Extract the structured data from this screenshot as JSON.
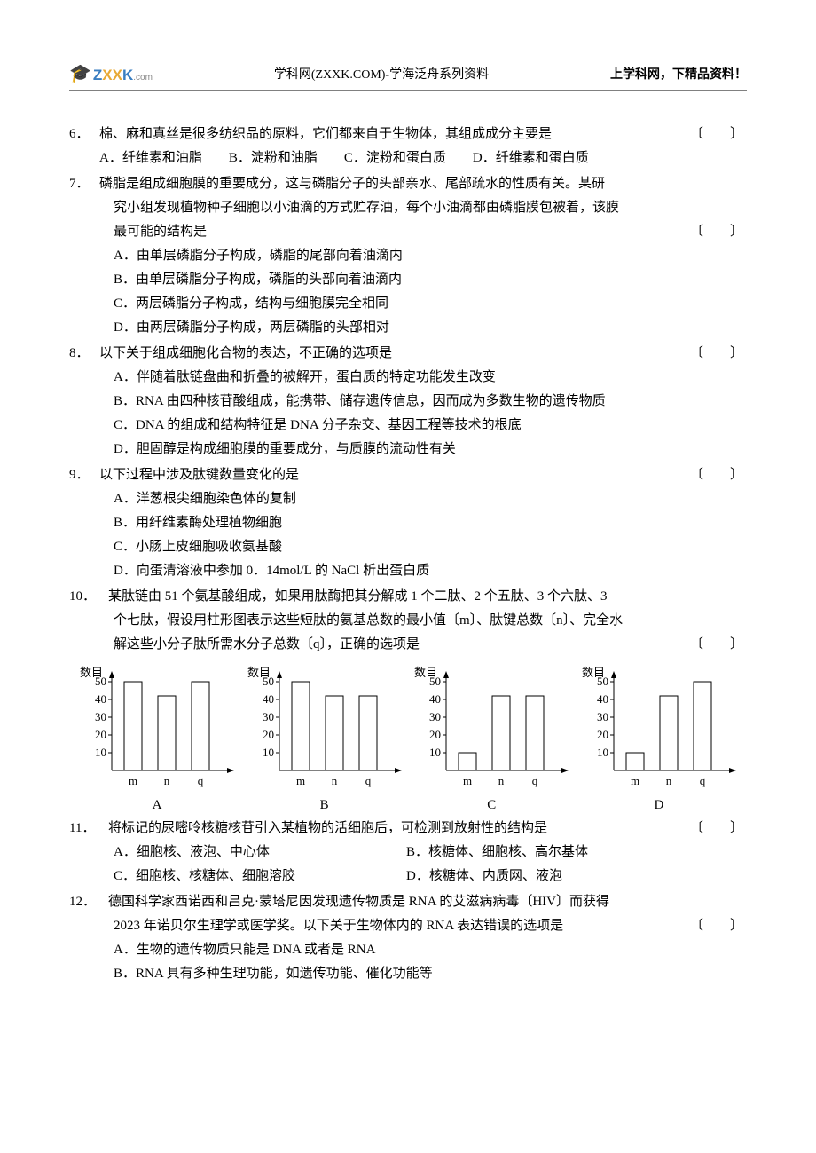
{
  "header": {
    "logo_text_z": "Z",
    "logo_text_xx": "XX",
    "logo_text_k": "K",
    "logo_text_com": ".com",
    "center": "学科网(ZXXK.COM)-学海泛舟系列资料",
    "right": "上学科网，下精品资料！"
  },
  "q6": {
    "num": "6．",
    "stem": "棉、麻和真丝是很多纺织品的原料，它们都来自于生物体，其组成成分主要是",
    "bracket": "〔　　〕",
    "optA": "A．纤维素和油脂",
    "optB": "B．淀粉和油脂",
    "optC": "C．淀粉和蛋白质",
    "optD": "D．纤维素和蛋白质"
  },
  "q7": {
    "num": "7．",
    "stem1": "磷脂是组成细胞膜的重要成分，这与磷脂分子的头部亲水、尾部疏水的性质有关。某研",
    "stem2": "究小组发现植物种子细胞以小油滴的方式贮存油，每个小油滴都由磷脂膜包被着，该膜",
    "stem3": "最可能的结构是",
    "bracket": "〔　　〕",
    "optA": "A．由单层磷脂分子构成，磷脂的尾部向着油滴内",
    "optB": "B．由单层磷脂分子构成，磷脂的头部向着油滴内",
    "optC": "C．两层磷脂分子构成，结构与细胞膜完全相同",
    "optD": "D．由两层磷脂分子构成，两层磷脂的头部相对"
  },
  "q8": {
    "num": "8．",
    "stem": "以下关于组成细胞化合物的表达，不正确的选项是",
    "bracket": "〔　　〕",
    "optA": "A．伴随着肽链盘曲和折叠的被解开，蛋白质的特定功能发生改变",
    "optB": "B．RNA 由四种核苷酸组成，能携带、储存遗传信息，因而成为多数生物的遗传物质",
    "optC": "C．DNA 的组成和结构特征是 DNA 分子杂交、基因工程等技术的根底",
    "optD": "D．胆固醇是构成细胞膜的重要成分，与质膜的流动性有关"
  },
  "q9": {
    "num": "9．",
    "stem": "以下过程中涉及肽键数量变化的是",
    "bracket": "〔　　〕",
    "optA": "A．洋葱根尖细胞染色体的复制",
    "optB": "B．用纤维素酶处理植物细胞",
    "optC": "C．小肠上皮细胞吸收氨基酸",
    "optD": "D．向蛋清溶液中参加 0．14mol/L 的 NaCl 析出蛋白质"
  },
  "q10": {
    "num": "10．",
    "stem1": "某肽链由 51 个氨基酸组成，如果用肽酶把其分解成 1 个二肽、2 个五肽、3 个六肽、3",
    "stem2": "个七肽，假设用柱形图表示这些短肽的氨基总数的最小值〔m〕、肽键总数〔n〕、完全水",
    "stem3": "解这些小分子肽所需水分子总数〔q〕，正确的选项是",
    "bracket": "〔　　〕"
  },
  "charts": {
    "ylabel": "数目",
    "yticks": [
      "10",
      "20",
      "30",
      "40",
      "50"
    ],
    "xlabels": [
      "m",
      "n",
      "q"
    ],
    "axis_color": "#000000",
    "bar_stroke": "#000000",
    "bar_fill": "#ffffff",
    "A": {
      "label": "A",
      "values": [
        50,
        42,
        50
      ]
    },
    "B": {
      "label": "B",
      "values": [
        50,
        42,
        42
      ]
    },
    "C": {
      "label": "C",
      "values": [
        10,
        42,
        42
      ]
    },
    "D": {
      "label": "D",
      "values": [
        10,
        42,
        50
      ]
    }
  },
  "q11": {
    "num": "11．",
    "stem": "将标记的尿嘧呤核糖核苷引入某植物的活细胞后，可检测到放射性的结构是",
    "bracket": "〔　　〕",
    "optA": "A．细胞核、液泡、中心体",
    "optB": "B．核糖体、细胞核、高尔基体",
    "optC": "C．细胞核、核糖体、细胞溶胶",
    "optD": "D．核糖体、内质网、液泡"
  },
  "q12": {
    "num": "12．",
    "stem1": "德国科学家西诺西和吕克·蒙塔尼因发现遗传物质是 RNA 的艾滋病病毒〔HIV〕而获得",
    "stem2": "2023 年诺贝尔生理学或医学奖。以下关于生物体内的 RNA 表达错误的选项是",
    "bracket": "〔　　〕",
    "optA": "A．生物的遗传物质只能是 DNA 或者是 RNA",
    "optB": "B．RNA 具有多种生理功能，如遗传功能、催化功能等"
  }
}
